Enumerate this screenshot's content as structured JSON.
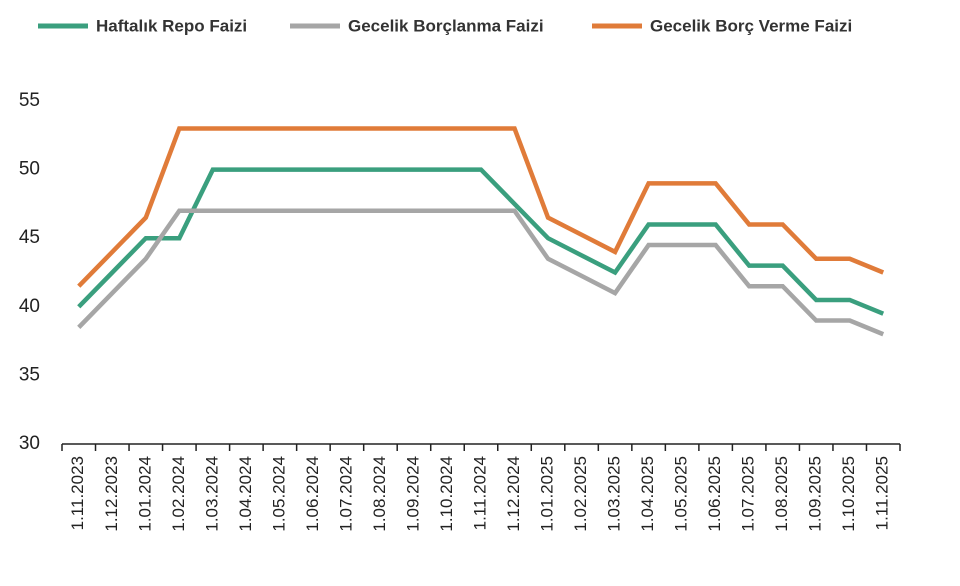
{
  "chart_data": {
    "type": "line",
    "categories": [
      "1.11.2023",
      "1.12.2023",
      "1.01.2024",
      "1.02.2024",
      "1.03.2024",
      "1.04.2024",
      "1.05.2024",
      "1.06.2024",
      "1.07.2024",
      "1.08.2024",
      "1.09.2024",
      "1.10.2024",
      "1.11.2024",
      "1.12.2024",
      "1.01.2025",
      "1.02.2025",
      "1.03.2025",
      "1.04.2025",
      "1.05.2025",
      "1.06.2025",
      "1.07.2025",
      "1.08.2025",
      "1.09.2025",
      "1.10.2025",
      "1.11.2025"
    ],
    "series": [
      {
        "name": "Haftalık Repo Faizi",
        "color": "#3a9f7e",
        "values": [
          40,
          42.5,
          45,
          45,
          50,
          50,
          50,
          50,
          50,
          50,
          50,
          50,
          50,
          47.5,
          45,
          43.75,
          42.5,
          46,
          46,
          46,
          43,
          43,
          40.5,
          40.5,
          39.5
        ]
      },
      {
        "name": "Gecelik Borçlanma Faizi",
        "color": "#a6a6a6",
        "values": [
          38.5,
          41,
          43.5,
          47,
          47,
          47,
          47,
          47,
          47,
          47,
          47,
          47,
          47,
          47,
          43.5,
          42.25,
          41,
          44.5,
          44.5,
          44.5,
          41.5,
          41.5,
          39,
          39,
          38
        ]
      },
      {
        "name": "Gecelik Borç Verme Faizi",
        "color": "#e07b39",
        "values": [
          41.5,
          44,
          46.5,
          53,
          53,
          53,
          53,
          53,
          53,
          53,
          53,
          53,
          53,
          53,
          46.5,
          45.25,
          44,
          49,
          49,
          49,
          46,
          46,
          43.5,
          43.5,
          42.5
        ]
      }
    ],
    "ylim": [
      30,
      55
    ],
    "yticks": [
      30,
      35,
      40,
      45,
      50,
      55
    ],
    "grid": false,
    "legend": "top"
  }
}
